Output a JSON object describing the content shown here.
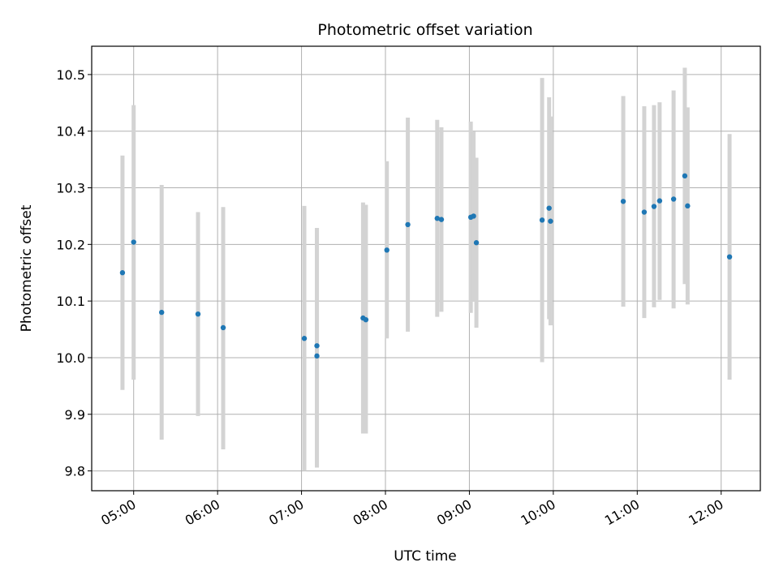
{
  "chart_data": {
    "type": "scatter",
    "title": "Photometric offset variation",
    "xlabel": "UTC time",
    "ylabel": "Photometric offset",
    "xlim": [
      "04:30",
      "12:28"
    ],
    "ylim": [
      9.765,
      10.55
    ],
    "grid": true,
    "x_ticks": [
      "05:00",
      "06:00",
      "07:00",
      "08:00",
      "09:00",
      "10:00",
      "11:00",
      "12:00"
    ],
    "y_ticks": [
      9.8,
      9.9,
      10.0,
      10.1,
      10.2,
      10.3,
      10.4,
      10.5
    ],
    "y_tick_labels": [
      "9.8",
      "9.9",
      "10.0",
      "10.1",
      "10.2",
      "10.3",
      "10.4",
      "10.5"
    ],
    "colors": {
      "point": "#1f77b4",
      "errorbar": "#d3d3d3",
      "grid": "#b0b0b0"
    },
    "points": [
      {
        "time": "04:52",
        "y": 10.15,
        "err_low": 9.943,
        "err_high": 10.357
      },
      {
        "time": "05:00",
        "y": 10.204,
        "err_low": 9.961,
        "err_high": 10.446
      },
      {
        "time": "05:20",
        "y": 10.08,
        "err_low": 9.855,
        "err_high": 10.305
      },
      {
        "time": "05:46",
        "y": 10.077,
        "err_low": 9.897,
        "err_high": 10.257
      },
      {
        "time": "06:04",
        "y": 10.053,
        "err_low": 9.838,
        "err_high": 10.266
      },
      {
        "time": "07:02",
        "y": 10.034,
        "err_low": 9.8,
        "err_high": 10.268
      },
      {
        "time": "07:11",
        "y": 10.021,
        "err_low": 9.806,
        "err_high": 10.229
      },
      {
        "time": "07:11",
        "y": 10.003,
        "err_low": 9.806,
        "err_high": 10.229
      },
      {
        "time": "07:44",
        "y": 10.07,
        "err_low": 9.866,
        "err_high": 10.274
      },
      {
        "time": "07:46",
        "y": 10.067,
        "err_low": 9.866,
        "err_high": 10.27
      },
      {
        "time": "08:01",
        "y": 10.19,
        "err_low": 10.034,
        "err_high": 10.347
      },
      {
        "time": "08:16",
        "y": 10.235,
        "err_low": 10.046,
        "err_high": 10.424
      },
      {
        "time": "08:37",
        "y": 10.246,
        "err_low": 10.072,
        "err_high": 10.42
      },
      {
        "time": "08:40",
        "y": 10.244,
        "err_low": 10.081,
        "err_high": 10.407
      },
      {
        "time": "09:01",
        "y": 10.248,
        "err_low": 10.079,
        "err_high": 10.417
      },
      {
        "time": "09:03",
        "y": 10.25,
        "err_low": 10.1,
        "err_high": 10.399
      },
      {
        "time": "09:05",
        "y": 10.203,
        "err_low": 10.053,
        "err_high": 10.353
      },
      {
        "time": "09:52",
        "y": 10.243,
        "err_low": 9.992,
        "err_high": 10.494
      },
      {
        "time": "09:57",
        "y": 10.264,
        "err_low": 10.068,
        "err_high": 10.46
      },
      {
        "time": "09:58",
        "y": 10.241,
        "err_low": 10.057,
        "err_high": 10.426
      },
      {
        "time": "10:50",
        "y": 10.276,
        "err_low": 10.09,
        "err_high": 10.462
      },
      {
        "time": "11:05",
        "y": 10.257,
        "err_low": 10.07,
        "err_high": 10.444
      },
      {
        "time": "11:12",
        "y": 10.267,
        "err_low": 10.089,
        "err_high": 10.446
      },
      {
        "time": "11:16",
        "y": 10.277,
        "err_low": 10.102,
        "err_high": 10.451
      },
      {
        "time": "11:26",
        "y": 10.28,
        "err_low": 10.087,
        "err_high": 10.472
      },
      {
        "time": "11:34",
        "y": 10.321,
        "err_low": 10.13,
        "err_high": 10.512
      },
      {
        "time": "11:36",
        "y": 10.268,
        "err_low": 10.094,
        "err_high": 10.442
      },
      {
        "time": "12:06",
        "y": 10.178,
        "err_low": 9.961,
        "err_high": 10.395
      }
    ]
  }
}
